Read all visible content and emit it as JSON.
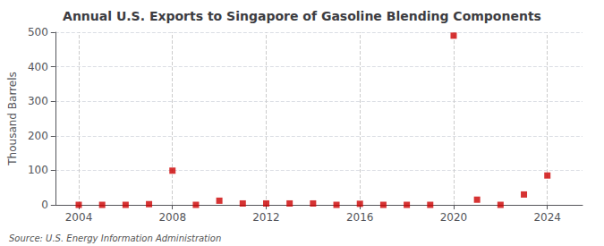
{
  "chart_data": {
    "type": "scatter",
    "title": "Annual U.S. Exports to Singapore of Gasoline Blending Components",
    "ylabel": "Thousand Barrels",
    "annotations": [
      "Source: U.S. Energy Information Administration"
    ],
    "x": [
      2004,
      2005,
      2006,
      2007,
      2008,
      2009,
      2010,
      2011,
      2012,
      2013,
      2014,
      2015,
      2016,
      2017,
      2018,
      2019,
      2020,
      2021,
      2022,
      2023,
      2024
    ],
    "values": [
      0,
      0,
      0,
      2,
      99,
      0,
      12,
      4,
      4,
      4,
      4,
      0,
      3,
      0,
      0,
      0,
      490,
      15,
      0,
      30,
      85
    ],
    "color": "#cc0000",
    "marker": "square",
    "xlim": [
      2003.0,
      2025.5
    ],
    "xticks": [
      2004,
      2008,
      2012,
      2016,
      2020,
      2024
    ],
    "ylim": [
      0,
      500
    ],
    "yticks": [
      0,
      100,
      200,
      300,
      400,
      500
    ],
    "grid": true
  }
}
